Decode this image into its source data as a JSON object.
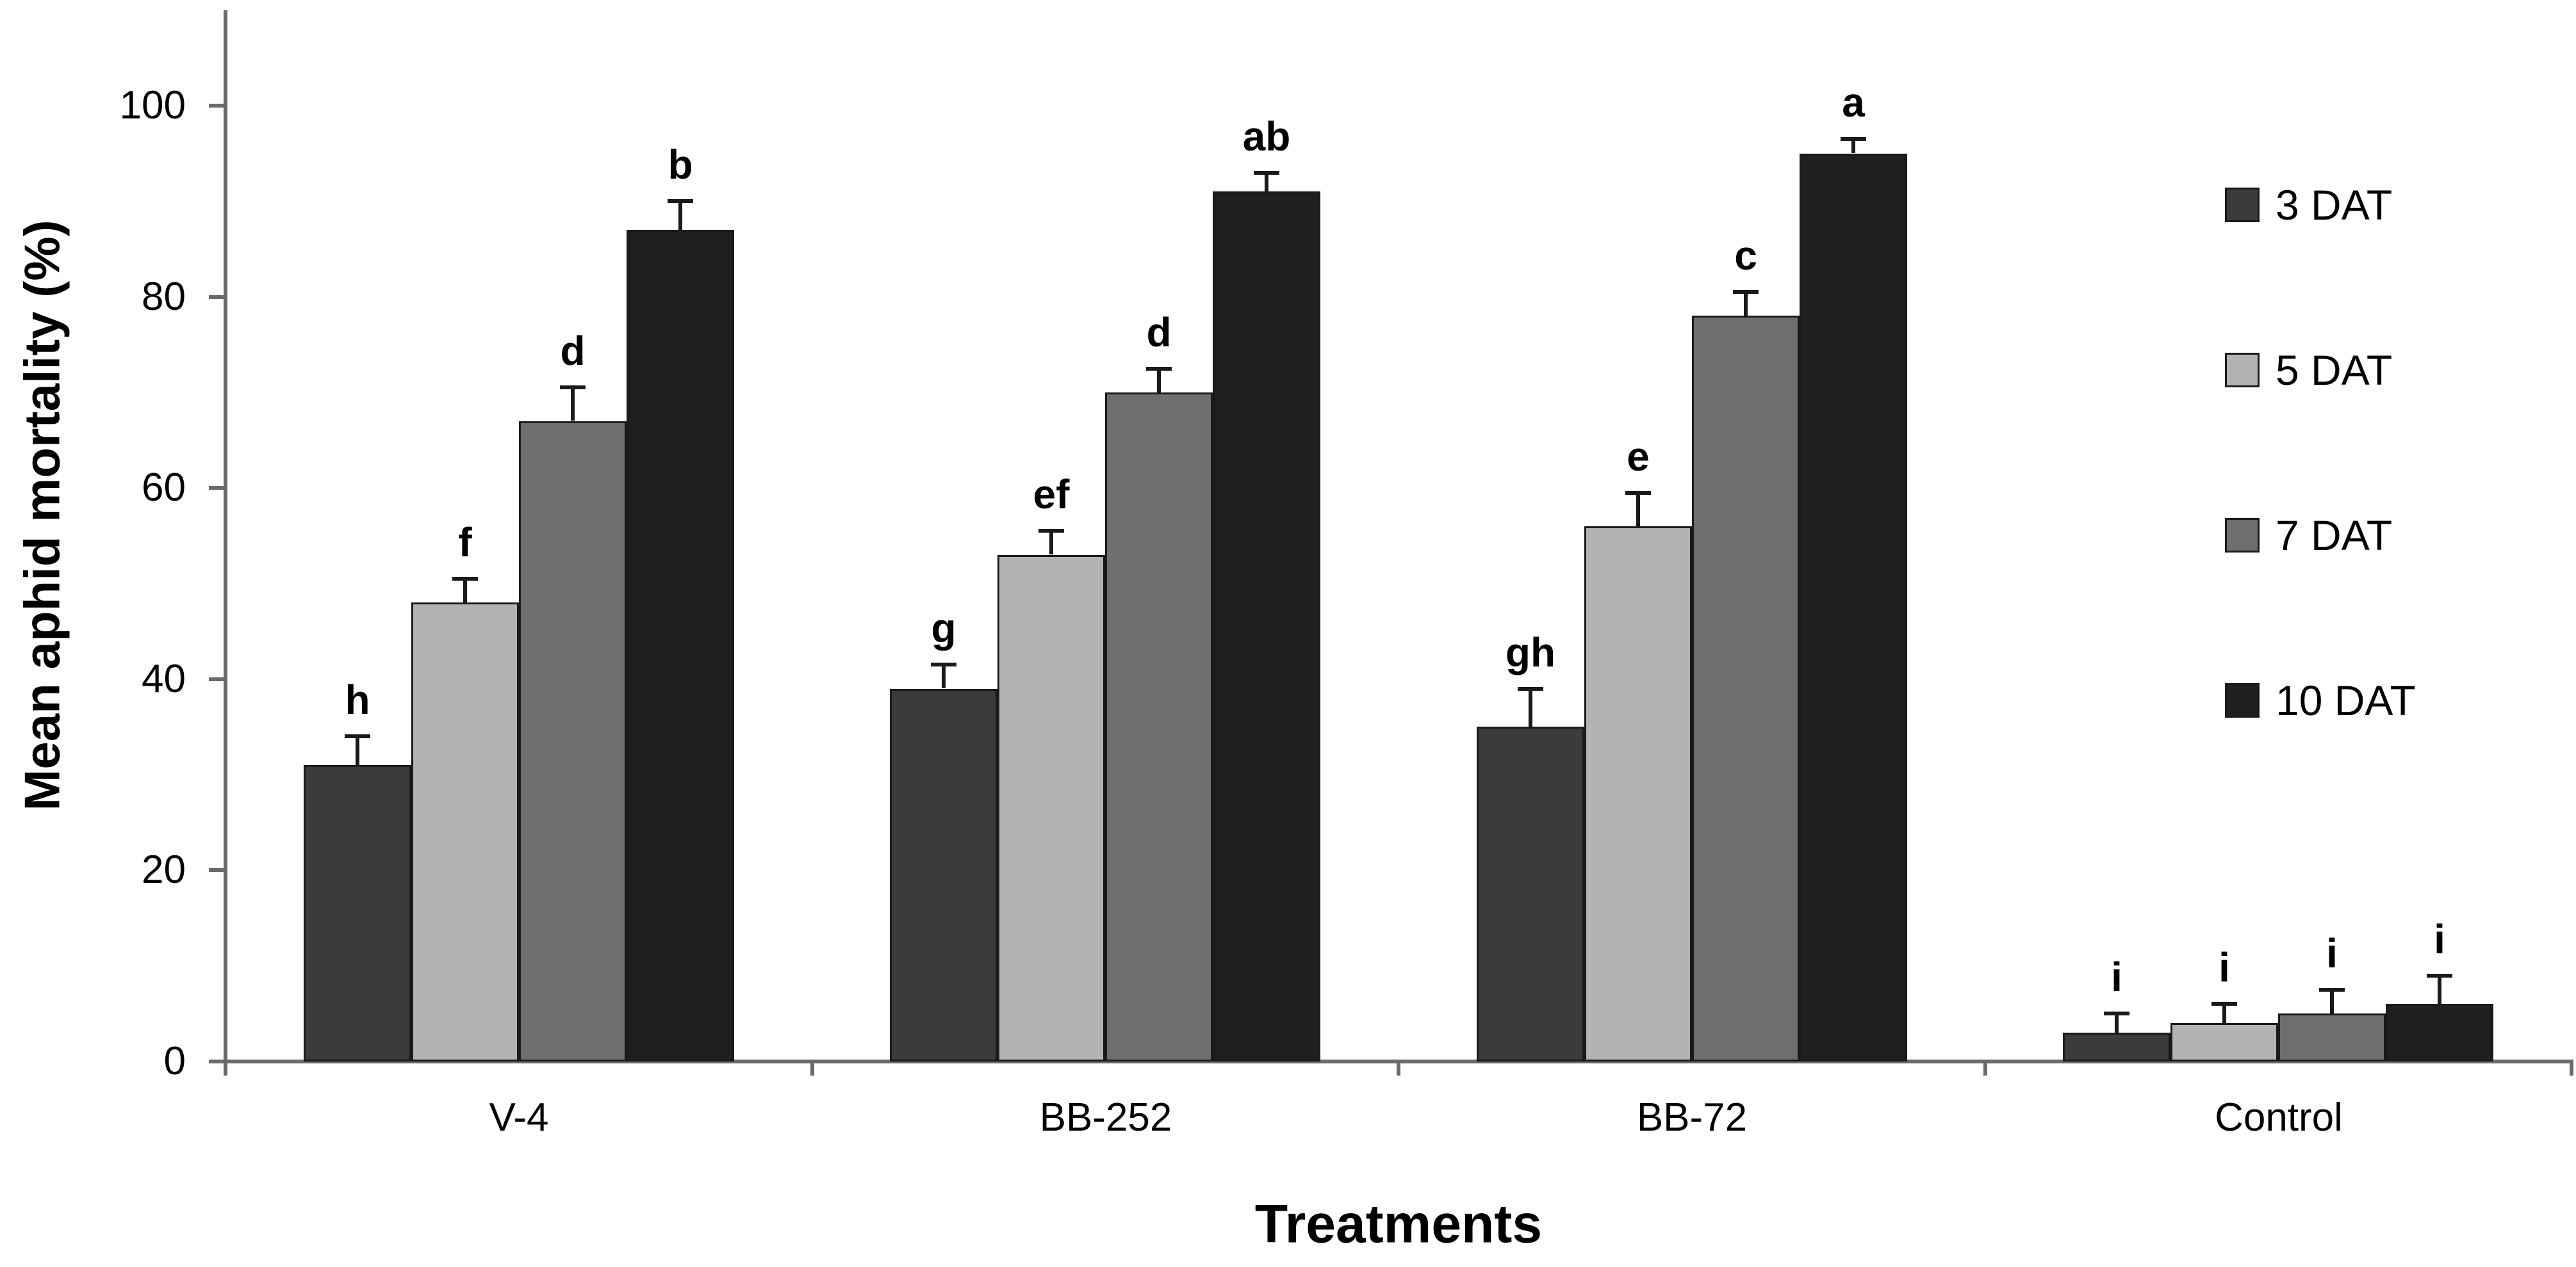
{
  "figure": {
    "background": "#ffffff"
  },
  "chart_data": {
    "type": "bar",
    "title": "",
    "xlabel": "Treatments",
    "ylabel": "Mean aphid mortality (%)",
    "categories": [
      "V-4",
      "BB-252",
      "BB-72",
      "Control"
    ],
    "series": [
      {
        "name": "3 DAT",
        "color": "#3b3b3b",
        "values": [
          31,
          39,
          35,
          3
        ],
        "errors": [
          3,
          2.5,
          4,
          2
        ],
        "sig_letters": [
          "h",
          "g",
          "gh",
          "i"
        ]
      },
      {
        "name": "5 DAT",
        "color": "#b3b3b3",
        "values": [
          48,
          53,
          56,
          4
        ],
        "errors": [
          2.5,
          2.5,
          3.5,
          2
        ],
        "sig_letters": [
          "f",
          "ef",
          "e",
          "i"
        ]
      },
      {
        "name": "7 DAT",
        "color": "#6f6f6f",
        "values": [
          67,
          70,
          78,
          5
        ],
        "errors": [
          3.5,
          2.5,
          2.5,
          2.5
        ],
        "sig_letters": [
          "d",
          "d",
          "c",
          "i"
        ]
      },
      {
        "name": "10 DAT",
        "color": "#1f1f1f",
        "values": [
          87,
          91,
          95,
          6
        ],
        "errors": [
          3,
          2,
          1.5,
          3
        ],
        "sig_letters": [
          "b",
          "ab",
          "a",
          "i"
        ]
      }
    ],
    "y_ticks": [
      0,
      20,
      40,
      60,
      80,
      100
    ],
    "ylim": [
      0,
      110
    ],
    "grid": false,
    "legend_position": "right",
    "error_bars": "upper",
    "bar_outline_color": "#1a1a1a",
    "axis_color": "#6a6a6a",
    "text_color": "#000000"
  }
}
